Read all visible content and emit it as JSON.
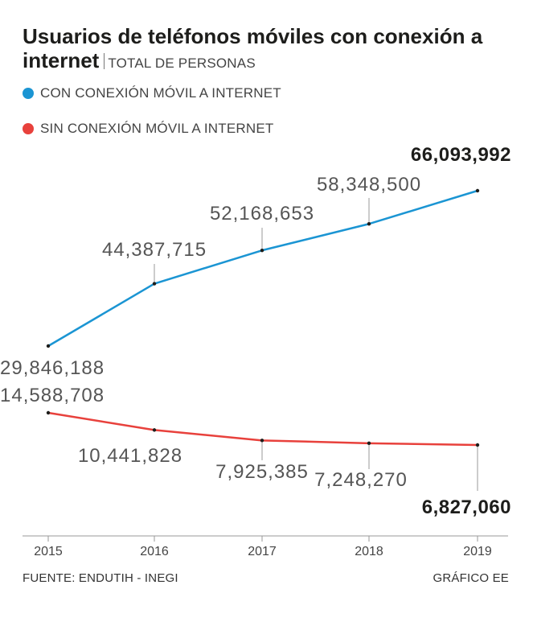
{
  "chart_data": {
    "type": "line",
    "title": "Usuarios de teléfonos móviles con conexión a internet",
    "subtitle": "TOTAL DE PERSONAS",
    "categories": [
      "2015",
      "2016",
      "2017",
      "2018",
      "2019"
    ],
    "series": [
      {
        "name": "CON CONEXIÓN MÓVIL A INTERNET",
        "color": "#1b95d3",
        "values": [
          29846188,
          44387715,
          52168653,
          58348500,
          66093992
        ],
        "labels": [
          "29,846,188",
          "44,387,715",
          "52,168,653",
          "58,348,500",
          "66,093,992"
        ]
      },
      {
        "name": "SIN CONEXIÓN MÓVIL A INTERNET",
        "color": "#e8413c",
        "values": [
          14588708,
          10441828,
          7925385,
          7248270,
          6827060
        ],
        "labels": [
          "14,588,708",
          "10,441,828",
          "7,925,385",
          "7,248,270",
          "6,827,060"
        ]
      }
    ],
    "ylim": [
      0,
      70000000
    ]
  },
  "footer": {
    "source": "FUENTE: ENDUTIH - INEGI",
    "credit": "GRÁFICO EE"
  }
}
